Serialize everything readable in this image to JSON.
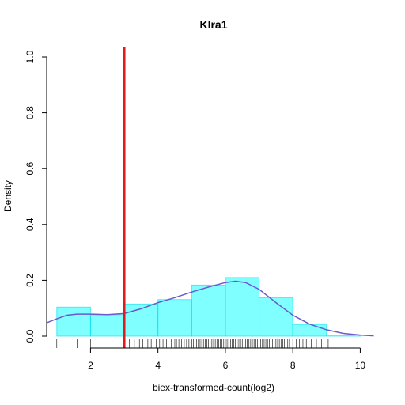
{
  "chart_data": {
    "type": "bar",
    "title": "Klra1",
    "xlabel": "biex-transformed-count(log2)",
    "ylabel": "Density",
    "xlim": [
      0.7,
      10.6
    ],
    "ylim": [
      0,
      1.0
    ],
    "x_ticks": [
      2,
      4,
      6,
      8,
      10
    ],
    "y_ticks": [
      0.0,
      0.2,
      0.4,
      0.6,
      0.8,
      1.0
    ],
    "x_tick_labels": [
      "2",
      "4",
      "6",
      "8",
      "10"
    ],
    "y_tick_labels": [
      "0.0",
      "0.2",
      "0.4",
      "0.6",
      "0.8",
      "1.0"
    ],
    "histogram": {
      "bin_edges": [
        1,
        2,
        3,
        4,
        5,
        6,
        7,
        8,
        9,
        10
      ],
      "values": [
        0.104,
        0.077,
        0.115,
        0.131,
        0.183,
        0.21,
        0.138,
        0.042,
        0.004
      ],
      "color": "#00FFFF"
    },
    "density_curve": {
      "x": [
        0.7,
        1.0,
        1.3,
        1.6,
        2.0,
        2.5,
        3.0,
        3.5,
        4.0,
        4.5,
        5.0,
        5.5,
        6.0,
        6.3,
        6.6,
        7.0,
        7.5,
        8.0,
        8.5,
        9.0,
        9.5,
        10.0,
        10.4
      ],
      "y": [
        0.048,
        0.062,
        0.075,
        0.079,
        0.079,
        0.077,
        0.081,
        0.098,
        0.12,
        0.138,
        0.158,
        0.176,
        0.192,
        0.197,
        0.192,
        0.168,
        0.12,
        0.075,
        0.043,
        0.023,
        0.01,
        0.004,
        0.001
      ],
      "color": "#6A5ACD"
    },
    "threshold_line": {
      "x": 3.0,
      "color": "#E31A1C"
    },
    "rug": [
      1.0,
      1.6,
      2.0,
      3.15,
      3.3,
      3.45,
      3.55,
      3.7,
      3.8,
      3.95,
      4.05,
      4.15,
      4.25,
      4.3,
      4.4,
      4.5,
      4.55,
      4.62,
      4.7,
      4.78,
      4.85,
      4.92,
      5.0,
      5.05,
      5.1,
      5.15,
      5.2,
      5.25,
      5.3,
      5.35,
      5.4,
      5.45,
      5.5,
      5.55,
      5.6,
      5.65,
      5.7,
      5.75,
      5.8,
      5.85,
      5.9,
      5.95,
      6.0,
      6.05,
      6.1,
      6.15,
      6.2,
      6.25,
      6.3,
      6.35,
      6.4,
      6.45,
      6.5,
      6.55,
      6.6,
      6.65,
      6.7,
      6.75,
      6.8,
      6.85,
      6.9,
      6.95,
      7.0,
      7.05,
      7.1,
      7.15,
      7.2,
      7.25,
      7.3,
      7.35,
      7.4,
      7.45,
      7.5,
      7.55,
      7.6,
      7.65,
      7.7,
      7.75,
      7.8,
      7.85,
      7.9,
      8.0,
      8.1,
      8.2,
      8.3,
      8.4,
      8.55,
      8.7,
      8.85,
      9.05
    ]
  }
}
